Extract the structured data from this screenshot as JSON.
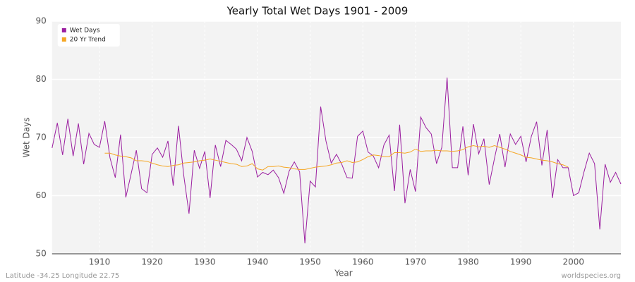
{
  "chart_data": {
    "type": "line",
    "title": "Yearly Total Wet Days 1901 - 2009",
    "x_label": "Year",
    "y_label": "Wet Days",
    "footer_left": "Latitude -34.25 Longitude 22.75",
    "footer_right": "worldspecies.org",
    "x": [
      1901,
      1902,
      1903,
      1904,
      1905,
      1906,
      1907,
      1908,
      1909,
      1910,
      1911,
      1912,
      1913,
      1914,
      1915,
      1916,
      1917,
      1918,
      1919,
      1920,
      1921,
      1922,
      1923,
      1924,
      1925,
      1926,
      1927,
      1928,
      1929,
      1930,
      1931,
      1932,
      1933,
      1934,
      1935,
      1936,
      1937,
      1938,
      1939,
      1940,
      1941,
      1942,
      1943,
      1944,
      1945,
      1946,
      1947,
      1948,
      1949,
      1950,
      1951,
      1952,
      1953,
      1954,
      1955,
      1956,
      1957,
      1958,
      1959,
      1960,
      1961,
      1962,
      1963,
      1964,
      1965,
      1966,
      1967,
      1968,
      1969,
      1970,
      1971,
      1972,
      1973,
      1974,
      1975,
      1976,
      1977,
      1978,
      1979,
      1980,
      1981,
      1982,
      1983,
      1984,
      1985,
      1986,
      1987,
      1988,
      1989,
      1990,
      1991,
      1992,
      1993,
      1994,
      1995,
      1996,
      1997,
      1998,
      1999,
      2000,
      2001,
      2002,
      2003,
      2004,
      2005,
      2006,
      2007,
      2008,
      2009
    ],
    "series": [
      {
        "name": "Wet Days",
        "color": "#9b1fa0",
        "values": [
          68.2,
          72.5,
          67,
          73.2,
          66.8,
          72.4,
          65.4,
          70.7,
          68.8,
          68.3,
          72.8,
          66.5,
          63.1,
          70.5,
          59.7,
          63.7,
          67.8,
          61.2,
          60.5,
          67.1,
          68.2,
          66.6,
          69.4,
          61.7,
          72,
          63.5,
          56.9,
          67.8,
          64.7,
          67.6,
          59.6,
          68.7,
          65,
          69.5,
          68.8,
          68,
          66,
          70,
          67.6,
          63.2,
          64,
          63.6,
          64.4,
          63.1,
          60.4,
          64.2,
          65.8,
          64.1,
          51.8,
          62.5,
          61.5,
          75.3,
          69.4,
          65.6,
          67.1,
          65.4,
          63.1,
          63,
          70.2,
          71.1,
          67.5,
          66.8,
          64.8,
          68.7,
          70.4,
          60.8,
          72.2,
          58.7,
          64.5,
          60.7,
          73.5,
          71.7,
          70.6,
          65.5,
          68.3,
          80.3,
          64.8,
          64.8,
          71.9,
          63.5,
          72.3,
          67.2,
          69.8,
          61.9,
          66.4,
          70.6,
          64.9,
          70.6,
          68.8,
          70.2,
          65.8,
          70.2,
          72.7,
          65.2,
          71.3,
          59.6,
          66.2,
          64.8,
          64.8,
          60,
          60.5,
          64.1,
          67.3,
          65.5,
          54.2,
          65.4,
          62.3,
          64,
          62
        ]
      },
      {
        "name": "20 Yr Trend",
        "color": "#f5a623",
        "values": [
          null,
          null,
          null,
          null,
          null,
          null,
          null,
          null,
          null,
          null,
          67.3,
          67.3,
          67.0,
          66.8,
          66.7,
          66.5,
          66.0,
          66.0,
          65.9,
          65.6,
          65.3,
          65.1,
          65.0,
          65.2,
          65.3,
          65.6,
          65.7,
          65.8,
          66.0,
          66.1,
          66.3,
          66.1,
          65.9,
          65.7,
          65.5,
          65.4,
          65.0,
          65.1,
          65.5,
          64.6,
          64.4,
          65.0,
          65.0,
          65.1,
          64.9,
          64.8,
          64.6,
          64.5,
          64.5,
          64.7,
          64.9,
          65.0,
          65.1,
          65.3,
          65.6,
          65.7,
          66.0,
          65.7,
          65.8,
          66.2,
          66.7,
          67.0,
          66.9,
          66.7,
          66.7,
          67.4,
          67.4,
          67.3,
          67.5,
          68.0,
          67.6,
          67.7,
          67.7,
          67.8,
          67.7,
          67.7,
          67.6,
          67.7,
          67.9,
          68.4,
          68.6,
          68.4,
          68.5,
          68.3,
          68.6,
          68.3,
          68.0,
          67.6,
          67.3,
          67.0,
          66.6,
          66.5,
          66.3,
          66.1,
          66.0,
          65.8,
          65.5,
          65.3,
          64.9,
          null,
          null,
          null,
          null,
          null,
          null,
          null,
          null,
          null,
          null
        ]
      }
    ],
    "xlim": [
      1901,
      2009
    ],
    "xticks": [
      1910,
      1920,
      1930,
      1940,
      1950,
      1960,
      1970,
      1980,
      1990,
      2000
    ],
    "ylim": [
      50,
      90
    ],
    "yticks": [
      50,
      60,
      70,
      80,
      90
    ],
    "grid": true,
    "legend": "top-left"
  }
}
